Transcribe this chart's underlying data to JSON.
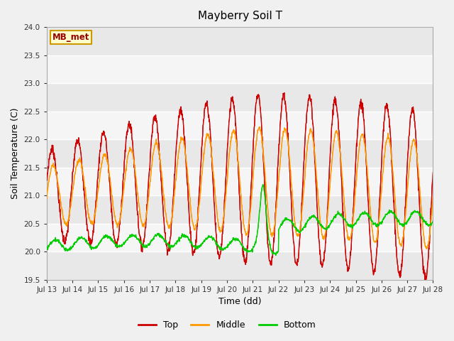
{
  "title": "Mayberry Soil T",
  "xlabel": "Time (dd)",
  "ylabel": "Soil Temperature (C)",
  "ylim": [
    19.5,
    24.0
  ],
  "yticks": [
    19.5,
    20.0,
    20.5,
    21.0,
    21.5,
    22.0,
    22.5,
    23.0,
    23.5,
    24.0
  ],
  "n_days": 15,
  "n_per_day": 96,
  "top_color": "#cc0000",
  "middle_color": "#ff9900",
  "bottom_color": "#00cc00",
  "legend_labels": [
    "Top",
    "Middle",
    "Bottom"
  ],
  "annotation_text": "MB_met",
  "bg_color": "#f0f0f0",
  "plot_bg_color": "#f0f0f0",
  "grid_color": "#ffffff",
  "x_tick_labels": [
    "Jul 13",
    "Jul 14",
    "Jul 15",
    "Jul 16",
    "Jul 17",
    "Jul 18",
    "Jul 19",
    "Jul 20",
    "Jul 21",
    "Jul 22",
    "Jul 23",
    "Jul 24",
    "Jul 25",
    "Jul 26",
    "Jul 27",
    "Jul 28"
  ]
}
